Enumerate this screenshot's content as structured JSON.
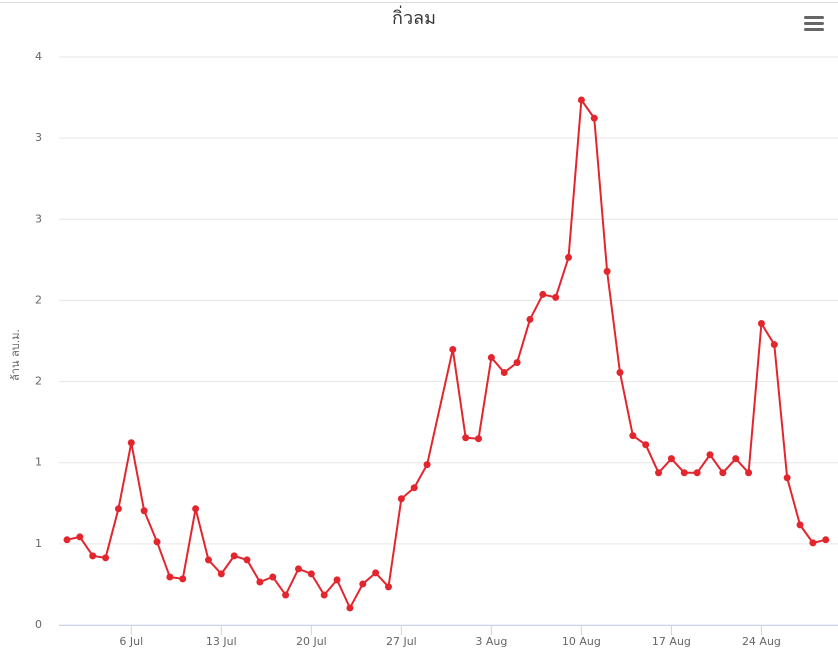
{
  "chart_data": {
    "type": "line",
    "title": "กิ่วลม",
    "y_label": "ล้าน ลบ.ม.",
    "categories": [
      null,
      null,
      null,
      null,
      null,
      "6 Jul",
      null,
      null,
      null,
      null,
      null,
      null,
      "13 Jul",
      null,
      null,
      null,
      null,
      null,
      null,
      "20 Jul",
      null,
      null,
      null,
      null,
      null,
      null,
      "27 Jul",
      null,
      null,
      null,
      null,
      null,
      null,
      "3 Aug",
      null,
      null,
      null,
      null,
      null,
      null,
      "10 Aug",
      null,
      null,
      null,
      null,
      null,
      null,
      "17 Aug",
      null,
      null,
      null,
      null,
      null,
      null,
      "24 Aug",
      null,
      null,
      null,
      null,
      null
    ],
    "series": [
      {
        "name": "กิ่วลม",
        "color": "#e3262e",
        "values": [
          0.525,
          0.543,
          0.426,
          0.414,
          0.716,
          1.123,
          0.704,
          0.512,
          0.296,
          0.284,
          0.716,
          0.401,
          0.315,
          0.426,
          0.401,
          0.265,
          0.296,
          0.185,
          0.346,
          0.315,
          0.185,
          0.278,
          0.105,
          0.253,
          0.321,
          0.235,
          0.778,
          0.846,
          0.988,
          null,
          1.698,
          1.154,
          1.148,
          1.648,
          1.556,
          1.617,
          1.883,
          2.037,
          2.019,
          2.265,
          3.235,
          3.123,
          2.179,
          1.556,
          1.167,
          1.111,
          0.938,
          1.025,
          0.938,
          0.938,
          1.049,
          0.938,
          1.025,
          0.938,
          1.858,
          1.728,
          0.907,
          0.617,
          0.506,
          0.525
        ]
      }
    ],
    "ylim": [
      0,
      3.5
    ],
    "yticks": [
      0,
      {
        "value": 0.5,
        "label": "1"
      },
      1,
      {
        "value": 1.5,
        "label": "2"
      },
      2,
      {
        "value": 2.5,
        "label": "3"
      },
      3,
      {
        "value": 3.5,
        "label": "4"
      }
    ],
    "grid": true
  }
}
